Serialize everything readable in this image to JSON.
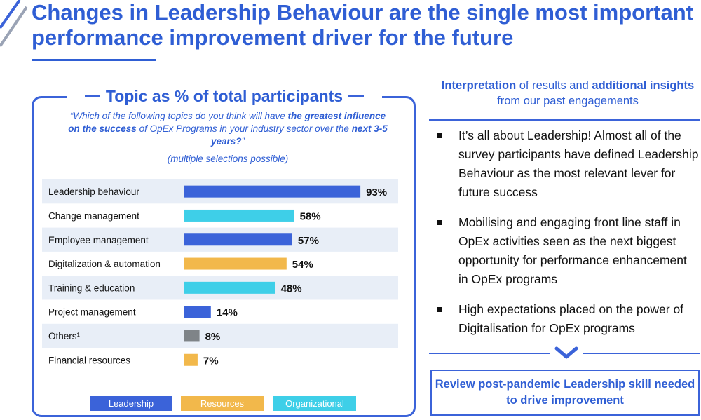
{
  "title": "Changes in Leadership Behaviour are the single most important performance improvement driver for the future",
  "panel": {
    "heading": "Topic as % of total participants",
    "question_parts": [
      {
        "text": "“Which of the following topics do you think will have ",
        "bold": false
      },
      {
        "text": "the greatest influence on the success",
        "bold": true
      },
      {
        "text": " of OpEx Programs in your industry sector over the ",
        "bold": false
      },
      {
        "text": "next 3-5 years?",
        "bold": true
      },
      {
        "text": "”",
        "bold": false
      }
    ],
    "note": "(multiple selections possible)"
  },
  "chart_data": {
    "type": "bar",
    "orientation": "horizontal",
    "categories": [
      "Leadership behaviour",
      "Change management",
      "Employee management",
      "Digitalization & automation",
      "Training & education",
      "Project management",
      "Others¹",
      "Financial resources"
    ],
    "values": [
      93,
      58,
      57,
      54,
      48,
      14,
      8,
      7
    ],
    "value_labels": [
      "93%",
      "58%",
      "57%",
      "54%",
      "48%",
      "14%",
      "8%",
      "7%"
    ],
    "groups": [
      "Leadership",
      "Organizational",
      "Leadership",
      "Resources",
      "Organizational",
      "Leadership",
      "Other",
      "Resources"
    ],
    "unit": "%",
    "xlim": [
      0,
      100
    ],
    "legend": [
      {
        "name": "Leadership",
        "color": "#3b63d9"
      },
      {
        "name": "Resources",
        "color": "#f2b84b"
      },
      {
        "name": "Organizational",
        "color": "#3ecfe8"
      }
    ],
    "group_colors": {
      "Leadership": "#3b63d9",
      "Resources": "#f2b84b",
      "Organizational": "#3ecfe8",
      "Other": "#7f8488"
    },
    "legend_placement": "bottom",
    "row_stripes": true
  },
  "right": {
    "interpretation_parts": [
      {
        "text": "Interpretation",
        "bold": true
      },
      {
        "text": " of results and ",
        "bold": false
      },
      {
        "text": "additional insights",
        "bold": true
      },
      {
        "text": " from our past engagements",
        "bold": false
      }
    ],
    "bullets": [
      "It’s all about Leadership! Almost all of the survey participants have defined Leadership Behaviour as the most relevant lever for future success",
      "Mobilising and engaging front line staff in OpEx activities seen as the next biggest opportunity for performance enhancement in OpEx programs",
      "High expectations placed on the power of Digitalisation for OpEx programs"
    ],
    "cta": "Review post-pandemic Leadership skill needed to drive improvement"
  },
  "colors": {
    "accent": "#2f5ed4",
    "border": "#3b63d9",
    "stripe": "#e8eef7"
  }
}
